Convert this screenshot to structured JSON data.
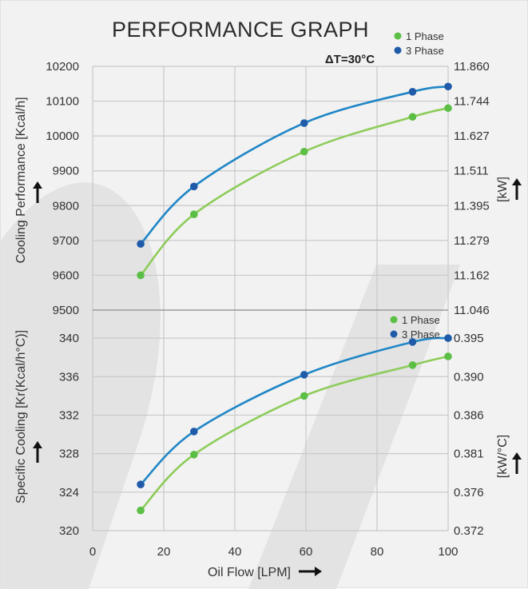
{
  "chart_data": {
    "type": "line",
    "title": "PERFORMANCE GRAPH",
    "annotation": "ΔT=30°C",
    "xlabel": "Oil Flow [LPM]",
    "xlim": [
      0,
      100
    ],
    "xticks": [
      "0",
      "20",
      "40",
      "60",
      "80",
      "100"
    ],
    "panels": [
      {
        "name": "cooling-performance",
        "ylabel_left": "Cooling Performance [Kcal/h]",
        "ylabel_right": "[kW]",
        "ylim": [
          9500,
          10200
        ],
        "yticks_left": [
          "9500",
          "9600",
          "9700",
          "9800",
          "9900",
          "10000",
          "10100",
          "10200"
        ],
        "yticks_right": [
          "11.046",
          "11.162",
          "11.279",
          "11.395",
          "11.511",
          "11.627",
          "11.744",
          "11.860"
        ],
        "legend": [
          "1 Phase",
          "3 Phase"
        ],
        "series": [
          {
            "name": "1 Phase",
            "color": "#8dcc5a",
            "marker_color": "#5cbf45",
            "x": [
              13.5,
              28.5,
              59.5,
              90,
              100
            ],
            "y": [
              9600,
              9775,
              9955,
              10055,
              10080
            ]
          },
          {
            "name": "3 Phase",
            "color": "#1f86c6",
            "marker_color": "#1f5ba8",
            "x": [
              13.5,
              28.5,
              59.5,
              90,
              100
            ],
            "y": [
              9690,
              9855,
              10037,
              10127,
              10142
            ]
          }
        ]
      },
      {
        "name": "specific-cooling",
        "ylabel_left": "Specific Cooling [Kr(Kcal/h°C)]",
        "ylabel_right": "[kW/°C]",
        "ylim": [
          320,
          342
        ],
        "yticks_left": [
          "320",
          "324",
          "328",
          "332",
          "336",
          "340"
        ],
        "yticks_right": [
          "0.372",
          "0.376",
          "0.381",
          "0.386",
          "0.390",
          "0.395"
        ],
        "legend": [
          "1 Phase",
          "3 Phase"
        ],
        "series": [
          {
            "name": "1 Phase",
            "color": "#8dcc5a",
            "marker_color": "#5cbf45",
            "x": [
              13.5,
              28.5,
              59.5,
              90,
              100
            ],
            "y": [
              322.1,
              327.9,
              334.0,
              337.2,
              338.1
            ]
          },
          {
            "name": "3 Phase",
            "color": "#1f86c6",
            "marker_color": "#1f5ba8",
            "x": [
              13.5,
              28.5,
              59.5,
              90,
              100
            ],
            "y": [
              324.8,
              330.3,
              336.2,
              339.6,
              340.0
            ]
          }
        ]
      }
    ]
  }
}
